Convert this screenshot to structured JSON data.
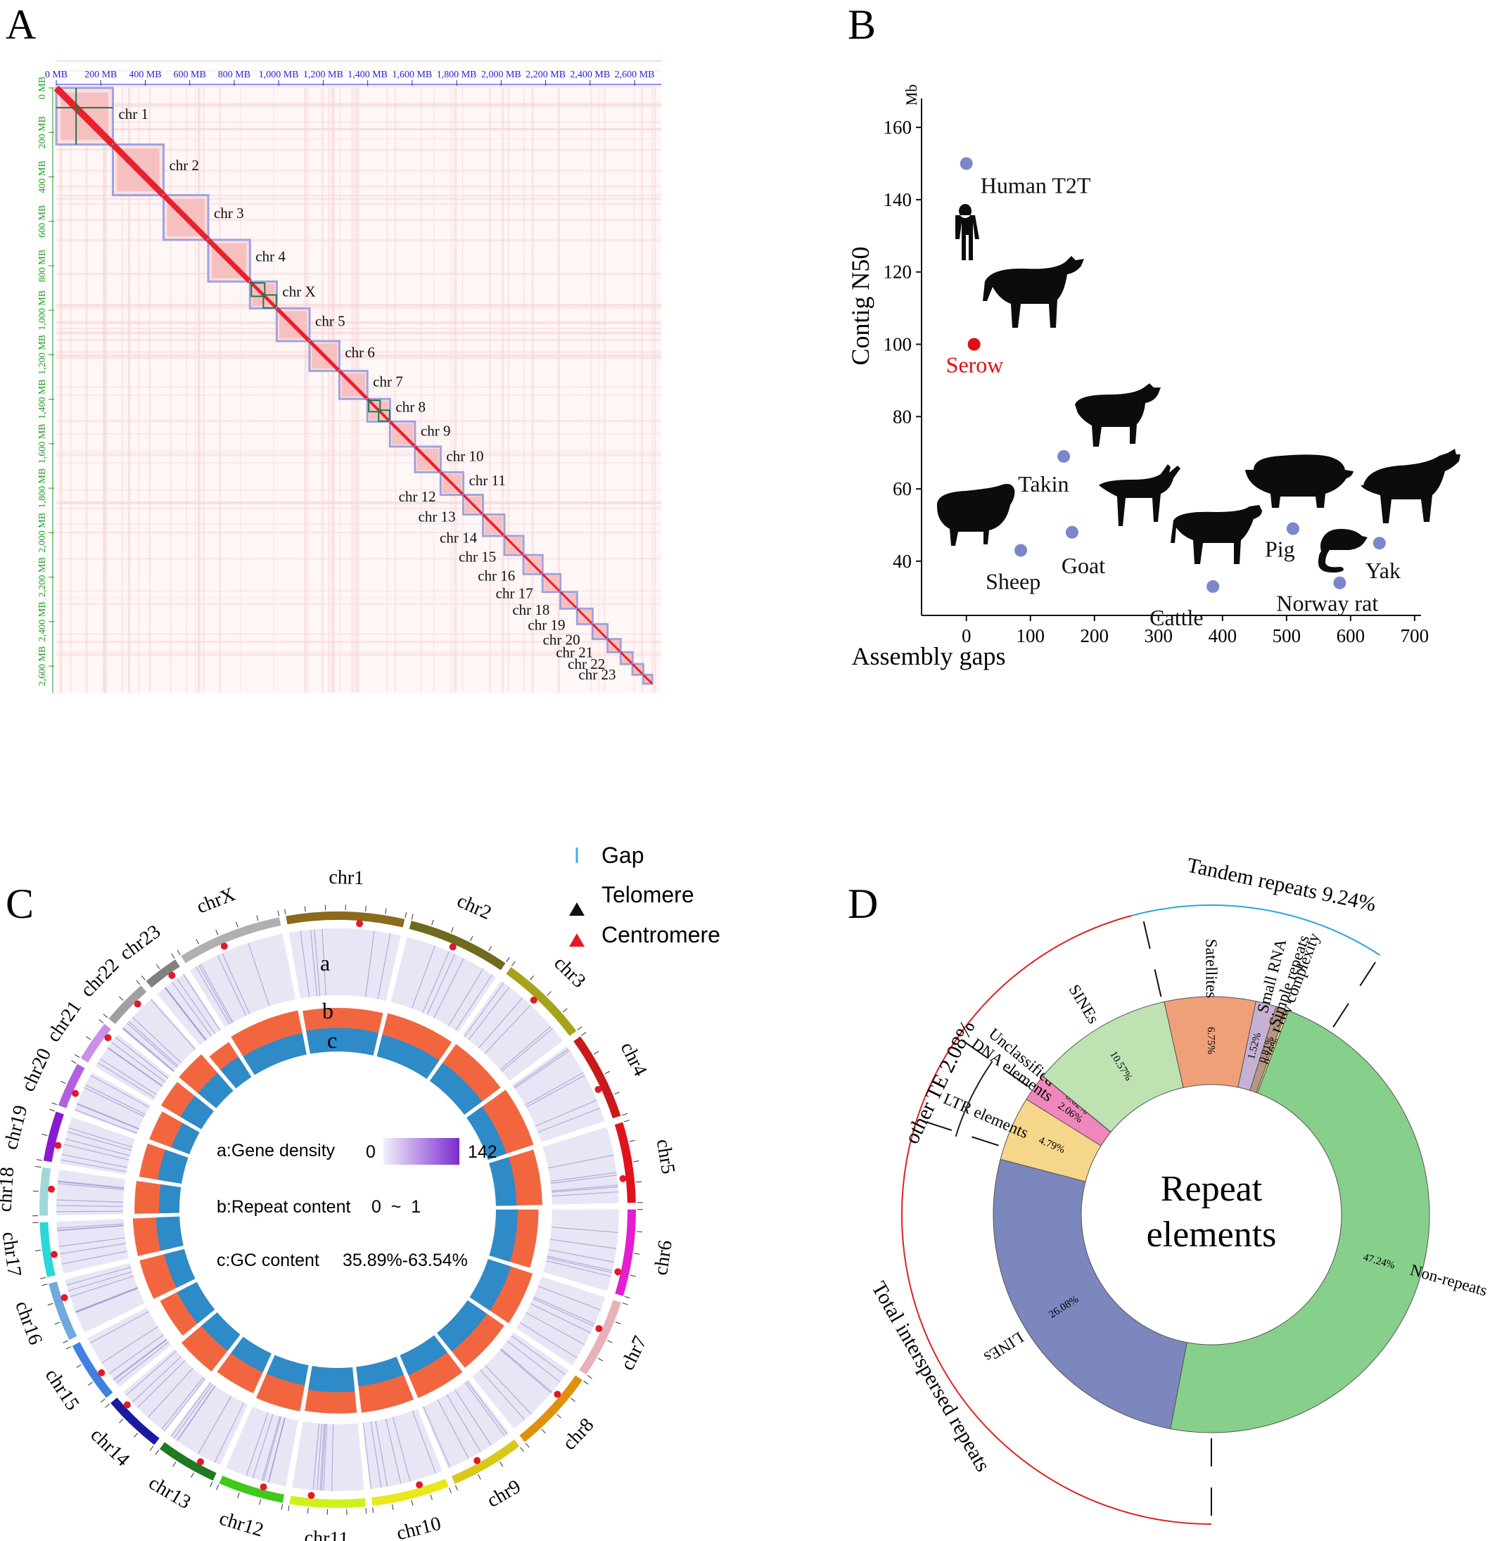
{
  "panel_letters": [
    "A",
    "B",
    "C",
    "D"
  ],
  "panelA": {
    "top_ticks": [
      "0 MB",
      "200 MB",
      "400 MB",
      "600 MB",
      "800 MB",
      "1,000 MB",
      "1,200 MB",
      "1,400 MB",
      "1,600 MB",
      "1,800 MB",
      "2,000 MB",
      "2,200 MB",
      "2,400 MB",
      "2,600 MB"
    ],
    "left_ticks": [
      "0 MB",
      "200 MB",
      "400 MB",
      "600 MB",
      "800 MB",
      "1,000 MB",
      "1,200 MB",
      "1,400 MB",
      "1,600 MB",
      "1,800 MB",
      "2,000 MB",
      "2,200 MB",
      "2,400 MB",
      "2,600 MB"
    ],
    "chromosomes": [
      "chr 1",
      "chr 2",
      "chr 3",
      "chr 4",
      "chr X",
      "chr 5",
      "chr 6",
      "chr 7",
      "chr 8",
      "chr 9",
      "chr 10",
      "chr 11",
      "chr 12",
      "chr 13",
      "chr 14",
      "chr 15",
      "chr 16",
      "chr 17",
      "chr 18",
      "chr 19",
      "chr 20",
      "chr 21",
      "chr 22",
      "chr 23"
    ],
    "colors": {
      "heat": "#e8212d",
      "box": "#9fa3e0",
      "scaffold": "#1a7a4a",
      "axis_top": "#2323d6",
      "axis_left": "#1e9a1e"
    }
  },
  "chart_data": [
    {
      "type": "scatter",
      "panel": "B",
      "xlabel": "Assembly gaps",
      "ylabel": "Contig N50",
      "yunit": "Mb",
      "xlim": [
        -70,
        710
      ],
      "ylim": [
        25,
        168
      ],
      "xticks": [
        0,
        100,
        200,
        300,
        400,
        500,
        600,
        700
      ],
      "yticks": [
        40,
        60,
        80,
        100,
        120,
        140,
        160
      ],
      "points": [
        {
          "label": "Human T2T",
          "x": 0,
          "y": 150,
          "color": "#7b86cc"
        },
        {
          "label": "Serow",
          "x": 12,
          "y": 100,
          "color": "#dd1111"
        },
        {
          "label": "Takin",
          "x": 152,
          "y": 69,
          "color": "#7b86cc"
        },
        {
          "label": "Sheep",
          "x": 85,
          "y": 43,
          "color": "#7b86cc"
        },
        {
          "label": "Goat",
          "x": 165,
          "y": 48,
          "color": "#7b86cc"
        },
        {
          "label": "Cattle",
          "x": 385,
          "y": 33,
          "color": "#7b86cc"
        },
        {
          "label": "Pig",
          "x": 510,
          "y": 49,
          "color": "#7b86cc"
        },
        {
          "label": "Norway rat",
          "x": 583,
          "y": 34,
          "color": "#7b86cc"
        },
        {
          "label": "Yak",
          "x": 645,
          "y": 45,
          "color": "#7b86cc"
        }
      ]
    },
    {
      "type": "circos",
      "panel": "C",
      "chromosomes": [
        "chr1",
        "chr2",
        "chr3",
        "chr4",
        "chr5",
        "chr6",
        "chr7",
        "chr8",
        "chr9",
        "chr10",
        "chr11",
        "chr12",
        "chr13",
        "chr14",
        "chr15",
        "chr16",
        "chr17",
        "chr18",
        "chr19",
        "chr20",
        "chr21",
        "chr22",
        "chr23",
        "chrX"
      ],
      "legend": [
        "Gap",
        "Telomere",
        "Centromere"
      ],
      "track_labels": [
        "a",
        "b",
        "c"
      ],
      "tracks": {
        "a": {
          "label": "a:Gene density",
          "min": "0",
          "max": "142"
        },
        "b": {
          "label": "b:Repeat content",
          "range": "0  ~  1"
        },
        "c": {
          "label": "c:GC content",
          "range": "35.89%-63.54%"
        }
      }
    },
    {
      "type": "pie",
      "panel": "D",
      "title": "Repeat elements",
      "slices": [
        {
          "label": "Satellites",
          "value": 6.75,
          "text": "6.75%",
          "color": "#f0a079"
        },
        {
          "label": "Small RNA",
          "value": 1.52,
          "text": "1.52%",
          "color": "#c6b1d4"
        },
        {
          "label": "Simple repeats",
          "value": 0.81,
          "text": "0.81%",
          "color": "#b49683"
        },
        {
          "label": "Low complexity",
          "value": 0.16,
          "text": "0.16%",
          "color": "#f5f075"
        },
        {
          "label": "Non-repeats",
          "value": 47.24,
          "text": "47.24%",
          "color": "#86d08b"
        },
        {
          "label": "LINEs",
          "value": 26.08,
          "text": "26.08%",
          "color": "#7b87bd"
        },
        {
          "label": "LTR elements",
          "value": 4.79,
          "text": "4.79%",
          "color": "#f6d68a"
        },
        {
          "label": "DNA elements",
          "value": 2.06,
          "text": "2.06%",
          "color": "#ef87bd"
        },
        {
          "label": "Unclassified",
          "value": 0.02,
          "text": "0.02%",
          "color": "#a9dcea"
        },
        {
          "label": "SINEs",
          "value": 10.57,
          "text": "10.57%",
          "color": "#bfe2b2"
        }
      ],
      "groups": [
        {
          "label": "Tandem repeats  9.24%",
          "color": "#2aa6d8"
        },
        {
          "label": "Total interspersed repeats",
          "color": "#dd2222"
        },
        {
          "label": "other TE 2.08%",
          "color": "#222222"
        }
      ]
    }
  ]
}
